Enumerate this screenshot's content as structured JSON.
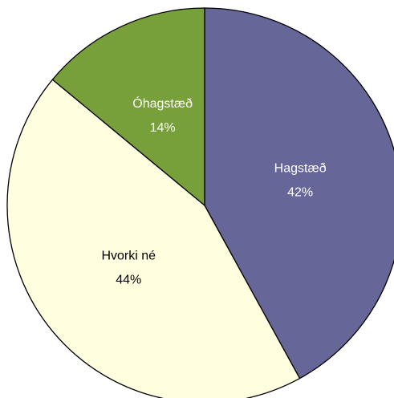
{
  "chart_data": {
    "type": "pie",
    "categories": [
      "Hagstæð",
      "Hvorki né",
      "Óhagstæð"
    ],
    "values": [
      42,
      44,
      14
    ],
    "value_labels": [
      "42%",
      "44%",
      "14%"
    ],
    "colors": [
      "#666699",
      "#ffffe0",
      "#77a03a"
    ],
    "label_colors": [
      "#ffffff",
      "#000000",
      "#ffffff"
    ]
  }
}
